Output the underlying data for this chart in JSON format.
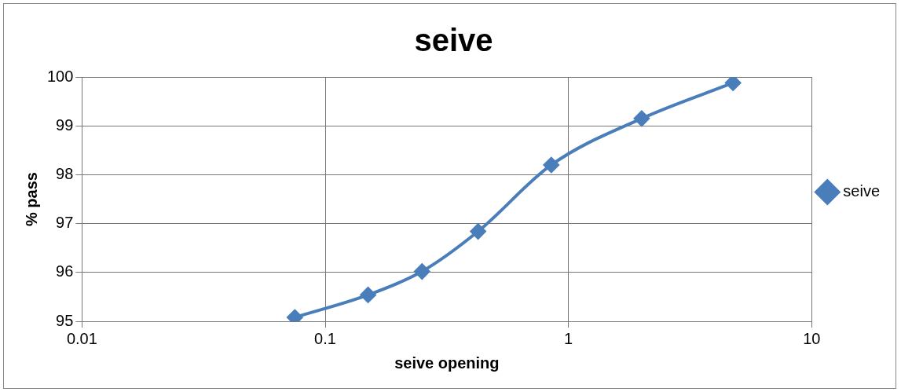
{
  "chart_data": {
    "type": "line",
    "title": "seive",
    "xlabel": "seive opening",
    "ylabel": "% pass",
    "x": [
      0.075,
      0.15,
      0.25,
      0.425,
      0.85,
      2,
      4.75
    ],
    "series": [
      {
        "name": "seive",
        "color": "#4a7ebb",
        "values": [
          95.08,
          95.54,
          96.02,
          96.84,
          98.2,
          99.15,
          99.88
        ]
      }
    ],
    "log": "x",
    "xlim": [
      0.01,
      10
    ],
    "xticks": [
      0.01,
      0.1,
      1,
      10
    ],
    "ylim": [
      95,
      100
    ],
    "yticks": [
      95,
      96,
      97,
      98,
      99,
      100
    ],
    "grid": true,
    "legend": "right",
    "marker": "diamond",
    "line_style": "solid"
  }
}
